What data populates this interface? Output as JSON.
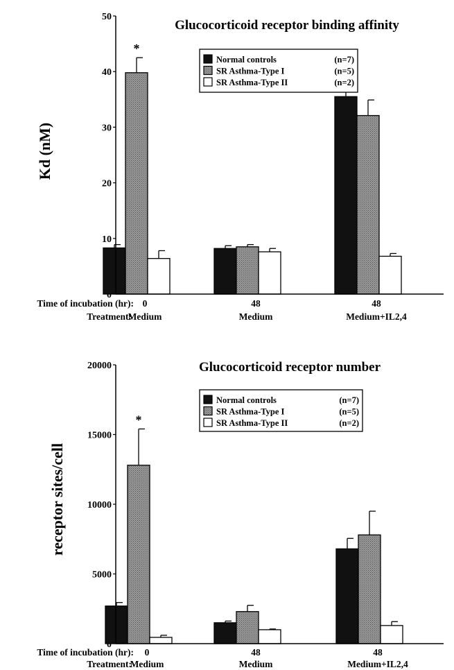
{
  "colors": {
    "normal": "#111111",
    "type1": "#8a8a8a",
    "type2": "#ffffff",
    "ink": "#000000"
  },
  "chart_data": [
    {
      "type": "bar",
      "title": "Glucocorticoid receptor binding  affinity",
      "ylabel": "Kd  (nM)",
      "ylim": [
        0,
        50
      ],
      "yticks": [
        0,
        10,
        20,
        30,
        40,
        50
      ],
      "row_labels": [
        "Time of incubation (hr):",
        "Treatment:"
      ],
      "groups": [
        {
          "time": "0",
          "treatment": "Medium"
        },
        {
          "time": "48",
          "treatment": "Medium"
        },
        {
          "time": "48",
          "treatment": "Medium+IL2,4"
        }
      ],
      "series": [
        {
          "name": "Normal controls",
          "n": "(n=7)",
          "values": [
            8.3,
            8.2,
            35.5
          ],
          "errors": [
            0.6,
            0.5,
            1.9
          ]
        },
        {
          "name": "SR Asthma-Type I",
          "n": "(n=5)",
          "values": [
            39.8,
            8.5,
            32.1
          ],
          "errors": [
            2.7,
            0.4,
            2.8
          ]
        },
        {
          "name": "SR Asthma-Type II",
          "n": "(n=2)",
          "values": [
            6.4,
            7.6,
            6.8
          ],
          "errors": [
            1.4,
            0.6,
            0.5
          ]
        }
      ],
      "annotations": [
        {
          "text": "*",
          "group": 0,
          "series": 1
        }
      ],
      "legend": "top-right"
    },
    {
      "type": "bar",
      "title": "Glucocorticoid receptor number",
      "ylabel": "receptor sites/cell",
      "ylim": [
        0,
        20000
      ],
      "yticks": [
        0,
        5000,
        10000,
        15000,
        20000
      ],
      "row_labels": [
        "Time of incubation (hr):",
        "Treatment:"
      ],
      "groups": [
        {
          "time": "0",
          "treatment": "Medium"
        },
        {
          "time": "48",
          "treatment": "Medium"
        },
        {
          "time": "48",
          "treatment": "Medium+IL2,4"
        }
      ],
      "series": [
        {
          "name": "Normal controls",
          "n": "(n=7)",
          "values": [
            2700,
            1500,
            6800
          ],
          "errors": [
            250,
            120,
            750
          ]
        },
        {
          "name": "SR Asthma-Type I",
          "n": "(n=5)",
          "values": [
            12800,
            2300,
            7800
          ],
          "errors": [
            2600,
            450,
            1700
          ]
        },
        {
          "name": "SR Asthma-Type II",
          "n": "(n=2)",
          "values": [
            450,
            1000,
            1300
          ],
          "errors": [
            150,
            50,
            280
          ]
        }
      ],
      "annotations": [
        {
          "text": "*",
          "group": 0,
          "series": 1
        }
      ],
      "legend": "top-right"
    }
  ]
}
